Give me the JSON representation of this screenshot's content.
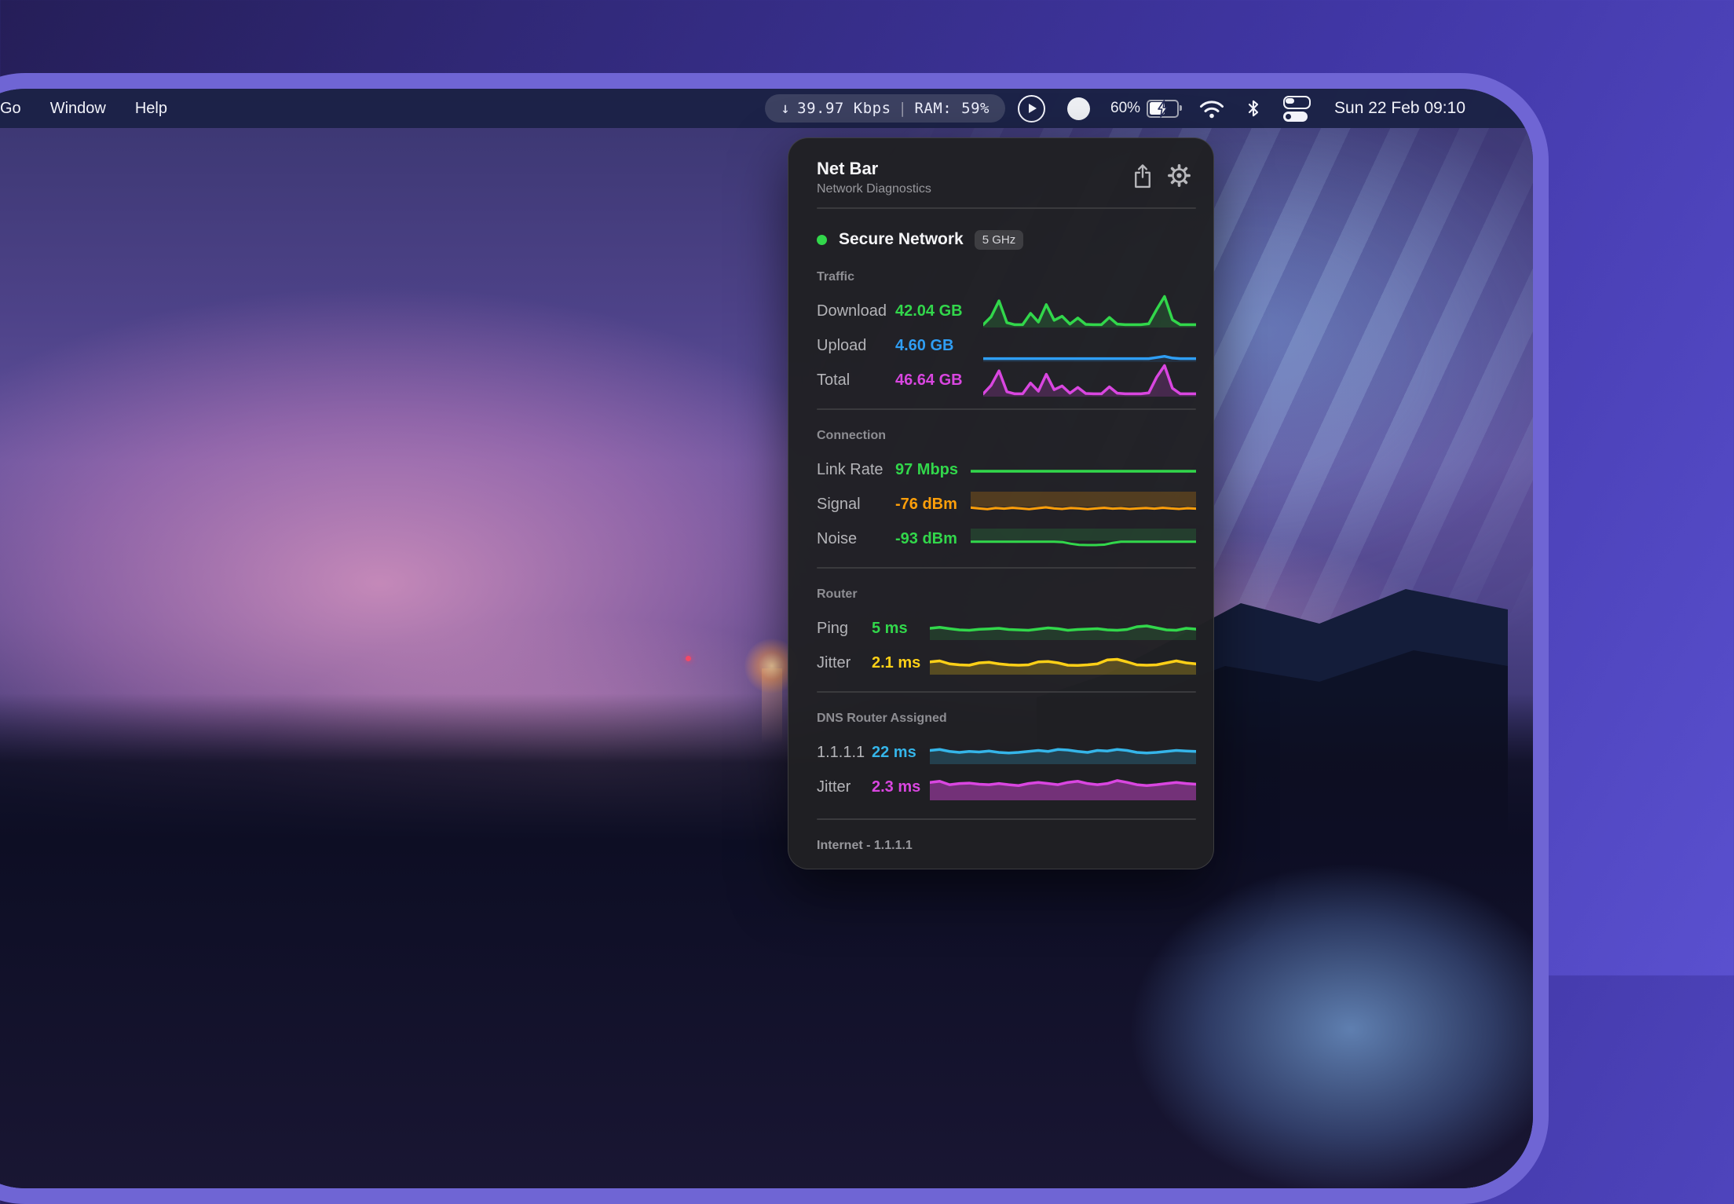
{
  "menu_bar": {
    "menus": [
      "Go",
      "Window",
      "Help"
    ],
    "status_pill": {
      "download_arrow": "↓",
      "download_rate": "39.97 Kbps",
      "separator": "|",
      "ram": "RAM: 59%"
    },
    "battery": {
      "percent": "60%",
      "level": 0.6,
      "charging": true
    },
    "clock": "Sun 22 Feb 09:10"
  },
  "panel": {
    "title": "Net Bar",
    "subtitle": "Network Diagnostics",
    "network": {
      "status_dot_color": "#32d74b",
      "name": "Secure Network",
      "band_badge": "5 GHz"
    },
    "sections": [
      {
        "title": "Traffic",
        "rows": [
          {
            "label": "Download",
            "value": "42.04 GB",
            "color": "#32d74b",
            "chart": "download"
          },
          {
            "label": "Upload",
            "value": "4.60 GB",
            "color": "#2f9ef4",
            "chart": "upload"
          },
          {
            "label": "Total",
            "value": "46.64 GB",
            "color": "#d946e0",
            "chart": "total"
          }
        ]
      },
      {
        "title": "Connection",
        "rows": [
          {
            "label": "Link Rate",
            "value": "97 Mbps",
            "color": "#32d74b",
            "chart": "link_rate"
          },
          {
            "label": "Signal",
            "value": "-76 dBm",
            "color": "#ff9f0a",
            "chart": "signal"
          },
          {
            "label": "Noise",
            "value": "-93 dBm",
            "color": "#32d74b",
            "chart": "noise"
          }
        ]
      },
      {
        "title": "Router",
        "rows": [
          {
            "label": "Ping",
            "value": "5 ms",
            "color": "#32d74b",
            "chart": "ping"
          },
          {
            "label": "Jitter",
            "value": "2.1 ms",
            "color": "#fdd017",
            "chart": "router_jitter"
          }
        ]
      },
      {
        "title": "DNS Router Assigned",
        "rows": [
          {
            "label": "1.1.1.1",
            "value": "22 ms",
            "color": "#35b5e9",
            "chart": "dns_latency"
          },
          {
            "label": "Jitter",
            "value": "2.3 ms",
            "color": "#d946e0",
            "chart": "dns_jitter"
          }
        ]
      }
    ],
    "footer": "Internet - 1.1.1.1"
  },
  "chart_data": {
    "type": "sparklines",
    "sparklines": {
      "download": {
        "color": "#32d74b",
        "stroke": 3.5,
        "fill": "below",
        "fill_color": "rgba(48,209,75,0.18)",
        "points": [
          0.03,
          0.3,
          0.85,
          0.1,
          0.03,
          0.03,
          0.42,
          0.12,
          0.72,
          0.18,
          0.32,
          0.05,
          0.26,
          0.04,
          0.03,
          0.03,
          0.28,
          0.05,
          0.03,
          0.03,
          0.03,
          0.06,
          0.55,
          1.0,
          0.2,
          0.03,
          0.03,
          0.03
        ]
      },
      "upload": {
        "color": "#2f9ef4",
        "stroke": 3.5,
        "fill": "below",
        "fill_color": "rgba(47,158,244,0.12)",
        "points": [
          0.05,
          0.05,
          0.05,
          0.05,
          0.05,
          0.05,
          0.05,
          0.05,
          0.05,
          0.05,
          0.05,
          0.05,
          0.05,
          0.05,
          0.05,
          0.05,
          0.05,
          0.05,
          0.05,
          0.05,
          0.05,
          0.05,
          0.09,
          0.13,
          0.07,
          0.05,
          0.05,
          0.05
        ]
      },
      "total": {
        "color": "#d946e0",
        "stroke": 3.5,
        "fill": "below",
        "fill_color": "rgba(217,70,224,0.2)",
        "points": [
          0.03,
          0.32,
          0.82,
          0.1,
          0.03,
          0.03,
          0.4,
          0.12,
          0.7,
          0.17,
          0.3,
          0.05,
          0.25,
          0.04,
          0.03,
          0.03,
          0.27,
          0.05,
          0.03,
          0.03,
          0.03,
          0.06,
          0.6,
          1.0,
          0.22,
          0.03,
          0.03,
          0.03
        ]
      },
      "link_rate": {
        "color": "#32d74b",
        "stroke": 3.5,
        "fill": "none",
        "fill_color": "",
        "points": [
          0.35,
          0.35,
          0.35,
          0.35,
          0.35,
          0.35,
          0.35,
          0.35,
          0.35,
          0.35,
          0.35,
          0.35,
          0.35,
          0.35,
          0.35,
          0.35,
          0.35,
          0.35,
          0.35,
          0.35,
          0.35,
          0.35,
          0.35,
          0.35,
          0.35,
          0.35,
          0.35,
          0.35
        ]
      },
      "signal": {
        "color": "#ff9f0a",
        "stroke": 3,
        "fill": "band",
        "base": 0.38,
        "fill_color": "rgba(255,159,10,0.22)",
        "points": [
          0.34,
          0.3,
          0.27,
          0.32,
          0.29,
          0.33,
          0.3,
          0.27,
          0.31,
          0.35,
          0.3,
          0.28,
          0.32,
          0.3,
          0.27,
          0.3,
          0.33,
          0.29,
          0.31,
          0.28,
          0.3,
          0.32,
          0.29,
          0.33,
          0.3,
          0.28,
          0.31,
          0.29
        ]
      },
      "noise": {
        "color": "#32d74b",
        "stroke": 3,
        "fill": "band",
        "base": 0.38,
        "fill_color": "rgba(48,215,90,0.16)",
        "points": [
          0.32,
          0.32,
          0.32,
          0.32,
          0.32,
          0.32,
          0.32,
          0.32,
          0.32,
          0.32,
          0.32,
          0.3,
          0.2,
          0.13,
          0.12,
          0.12,
          0.14,
          0.25,
          0.32,
          0.32,
          0.32,
          0.32,
          0.32,
          0.32,
          0.32,
          0.32,
          0.32,
          0.32
        ]
      },
      "ping": {
        "color": "#32d74b",
        "stroke": 3.5,
        "fill": "below",
        "fill_color": "rgba(48,209,75,0.15)",
        "points": [
          0.5,
          0.55,
          0.48,
          0.42,
          0.4,
          0.45,
          0.47,
          0.5,
          0.44,
          0.42,
          0.4,
          0.46,
          0.52,
          0.48,
          0.4,
          0.44,
          0.46,
          0.48,
          0.42,
          0.4,
          0.44,
          0.58,
          0.62,
          0.52,
          0.42,
          0.4,
          0.5,
          0.46
        ]
      },
      "router_jitter": {
        "color": "#fdd017",
        "stroke": 3.5,
        "fill": "below",
        "fill_color": "rgba(253,208,23,0.25)",
        "points": [
          0.55,
          0.6,
          0.45,
          0.4,
          0.38,
          0.5,
          0.53,
          0.45,
          0.4,
          0.38,
          0.4,
          0.55,
          0.57,
          0.5,
          0.38,
          0.37,
          0.4,
          0.45,
          0.65,
          0.68,
          0.55,
          0.4,
          0.38,
          0.4,
          0.5,
          0.6,
          0.5,
          0.45
        ]
      },
      "dns_latency": {
        "color": "#35b5e9",
        "stroke": 3.5,
        "fill": "below",
        "fill_color": "rgba(53,181,233,0.22)",
        "points": [
          0.6,
          0.65,
          0.55,
          0.5,
          0.55,
          0.52,
          0.57,
          0.5,
          0.47,
          0.5,
          0.55,
          0.6,
          0.55,
          0.65,
          0.62,
          0.55,
          0.5,
          0.6,
          0.57,
          0.65,
          0.6,
          0.5,
          0.47,
          0.5,
          0.55,
          0.6,
          0.57,
          0.55
        ]
      },
      "dns_jitter": {
        "color": "#d946e0",
        "stroke": 3.5,
        "fill": "below",
        "fill_color": "rgba(217,70,224,0.45)",
        "points": [
          0.7,
          0.75,
          0.6,
          0.65,
          0.67,
          0.62,
          0.6,
          0.65,
          0.6,
          0.56,
          0.65,
          0.7,
          0.65,
          0.6,
          0.7,
          0.75,
          0.65,
          0.6,
          0.65,
          0.78,
          0.7,
          0.6,
          0.56,
          0.6,
          0.65,
          0.7,
          0.65,
          0.62
        ]
      }
    }
  }
}
